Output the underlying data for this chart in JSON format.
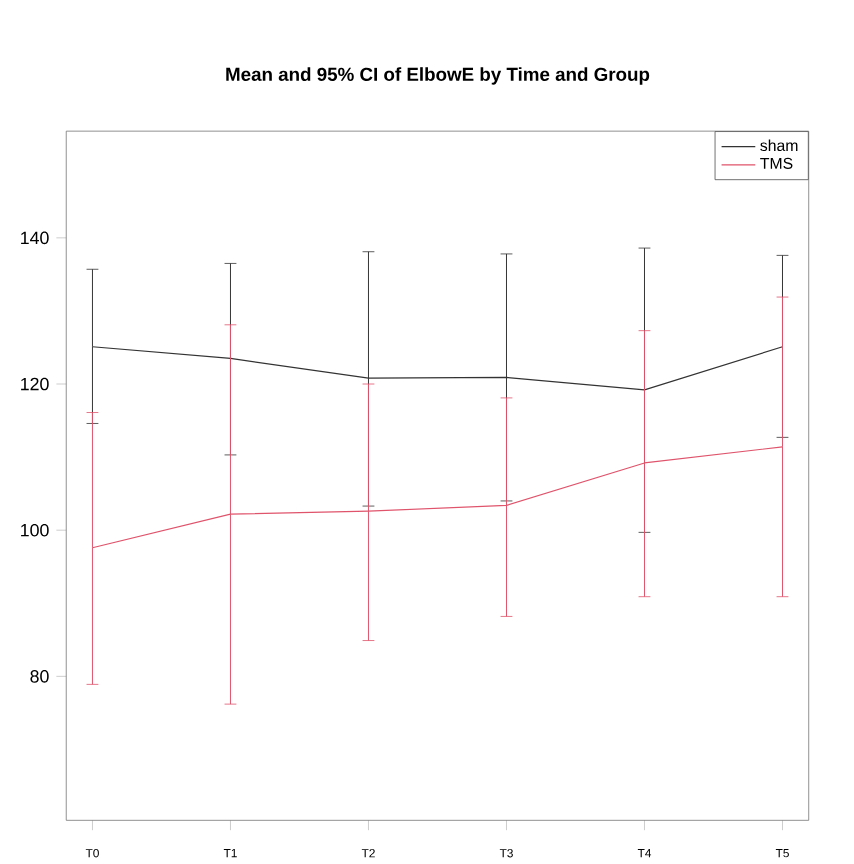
{
  "chart_data": {
    "type": "line",
    "title": "Mean and 95% CI of ElbowE by Time and Group",
    "categories": [
      "T0",
      "T1",
      "T2",
      "T3",
      "T4",
      "T5"
    ],
    "series": [
      {
        "name": "sham",
        "color": "#333333",
        "values": [
          125.1,
          123.5,
          120.8,
          120.9,
          119.2,
          125.1
        ],
        "errors": [
          [
            114.6,
            135.7
          ],
          [
            110.3,
            136.5
          ],
          [
            103.3,
            138.1
          ],
          [
            104.0,
            137.8
          ],
          [
            99.7,
            138.6
          ],
          [
            112.7,
            137.6
          ]
        ]
      },
      {
        "name": "TMS",
        "color": "#df536b",
        "values": [
          97.6,
          102.2,
          102.6,
          103.4,
          109.2,
          111.4
        ],
        "errors": [
          [
            78.9,
            116.1
          ],
          [
            76.2,
            128.1
          ],
          [
            84.9,
            120.0
          ],
          [
            88.2,
            118.1
          ],
          [
            90.9,
            127.3
          ],
          [
            90.9,
            131.9
          ]
        ]
      }
    ],
    "ylim": [
      60.3,
      154.6
    ],
    "yticks": [
      80,
      100,
      120,
      140
    ],
    "grid": false,
    "legend": "top right",
    "marker": "none",
    "line_style": "solid"
  }
}
